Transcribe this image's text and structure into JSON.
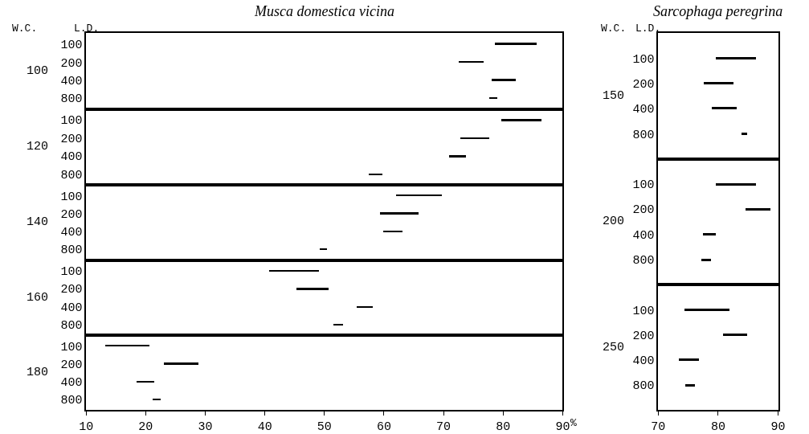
{
  "chart_data": [
    {
      "type": "bar",
      "orientation": "horizontal",
      "title": "Musca domestica vicina",
      "ylabel": "100",
      "annotations": [
        "W.C.",
        "L.D."
      ],
      "categories": [
        "100",
        "200",
        "400",
        "800"
      ],
      "base": [
        78.6,
        72.6,
        78.1,
        77.7
      ],
      "values": [
        7.1,
        4.2,
        4.0,
        1.4
      ],
      "color": "#000000",
      "xlim": [
        10,
        90
      ],
      "tick_labels": "y",
      "grid": false
    },
    {
      "type": "bar",
      "orientation": "horizontal",
      "ylabel": "120",
      "categories": [
        "100",
        "200",
        "400",
        "800"
      ],
      "base": [
        79.7,
        72.8,
        71.0,
        57.5
      ],
      "values": [
        6.8,
        4.9,
        2.8,
        2.2
      ],
      "color": "#000000",
      "xlim": [
        10,
        90
      ],
      "tick_labels": "y",
      "grid": false
    },
    {
      "type": "bar",
      "orientation": "horizontal",
      "ylabel": "140",
      "categories": [
        "100",
        "200",
        "400",
        "800"
      ],
      "base": [
        62.0,
        59.4,
        59.9,
        49.2
      ],
      "values": [
        7.8,
        6.4,
        3.3,
        1.2
      ],
      "color": "#000000",
      "xlim": [
        10,
        90
      ],
      "tick_labels": "y",
      "grid": false
    },
    {
      "type": "bar",
      "orientation": "horizontal",
      "ylabel": "160",
      "categories": [
        "100",
        "200",
        "400",
        "800"
      ],
      "base": [
        40.8,
        45.3,
        55.4,
        51.5
      ],
      "values": [
        8.3,
        5.4,
        2.7,
        1.7
      ],
      "color": "#000000",
      "xlim": [
        10,
        90
      ],
      "tick_labels": "y",
      "grid": false
    },
    {
      "type": "bar",
      "orientation": "horizontal",
      "ylabel": "180",
      "annotations": [
        "%"
      ],
      "categories": [
        "100",
        "200",
        "400",
        "800"
      ],
      "base": [
        13.2,
        23.1,
        18.5,
        21.2
      ],
      "values": [
        7.5,
        5.8,
        2.9,
        1.4
      ],
      "color": "#000000",
      "xlim": [
        10,
        90
      ],
      "xticks": [
        10,
        20,
        30,
        40,
        50,
        60,
        70,
        80,
        90
      ],
      "grid": false
    },
    {
      "type": "bar",
      "orientation": "horizontal",
      "title": "Sarcophaga peregrina",
      "ylabel": "150",
      "annotations": [
        "W.C.",
        "L.D."
      ],
      "categories": [
        "100",
        "200",
        "400",
        "800"
      ],
      "base": [
        79.7,
        77.6,
        79.0,
        83.9
      ],
      "values": [
        6.7,
        5.0,
        4.1,
        1.0
      ],
      "color": "#000000",
      "xlim": [
        70,
        90
      ],
      "tick_labels": "y",
      "grid": false
    },
    {
      "type": "bar",
      "orientation": "horizontal",
      "ylabel": "200",
      "categories": [
        "100",
        "200",
        "400",
        "800"
      ],
      "base": [
        79.7,
        84.6,
        77.5,
        77.3
      ],
      "values": [
        6.6,
        4.2,
        2.2,
        1.6
      ],
      "color": "#000000",
      "xlim": [
        70,
        90
      ],
      "tick_labels": "y",
      "grid": false
    },
    {
      "type": "bar",
      "orientation": "horizontal",
      "ylabel": "250",
      "categories": [
        "100",
        "200",
        "400",
        "800"
      ],
      "base": [
        74.4,
        80.8,
        73.5,
        74.5
      ],
      "values": [
        7.5,
        4.1,
        3.3,
        1.7
      ],
      "color": "#000000",
      "xlim": [
        70,
        90
      ],
      "xticks": [
        70,
        80,
        90
      ],
      "grid": false
    }
  ]
}
